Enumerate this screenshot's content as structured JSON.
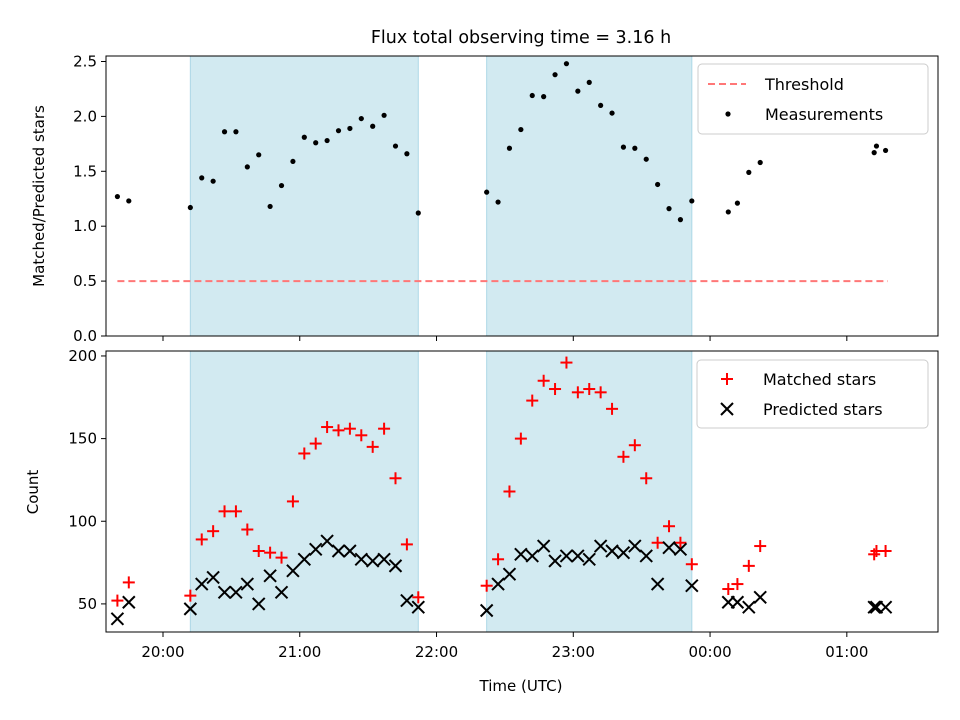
{
  "chart_data": [
    {
      "type": "scatter",
      "title": "Flux total observing time = 3.16 h",
      "xlabel": "",
      "ylabel": "Matched/Predicted stars",
      "xlim": [
        "19:35",
        "01:40"
      ],
      "ylim": [
        0,
        2.55
      ],
      "yticks": [
        0.0,
        0.5,
        1.0,
        1.5,
        2.0,
        2.5
      ],
      "ytick_labels": [
        "0.0",
        "0.5",
        "1.0",
        "1.5",
        "2.0",
        "2.5"
      ],
      "shaded_intervals": [
        [
          "20:12",
          "21:52"
        ],
        [
          "22:22",
          "23:52"
        ]
      ],
      "shade_color": "#add8e6",
      "legend_position": "upper right",
      "series": [
        {
          "name": "Threshold",
          "kind": "line",
          "style": "dashed",
          "color": "#ff7777",
          "x": [
            "19:40",
            "01:18"
          ],
          "y": [
            0.5,
            0.5
          ]
        },
        {
          "name": "Measurements",
          "kind": "scatter",
          "color": "#000000",
          "x": [
            "19:40",
            "19:45",
            "20:12",
            "20:17",
            "20:22",
            "20:27",
            "20:32",
            "20:37",
            "20:42",
            "20:47",
            "20:52",
            "20:57",
            "21:02",
            "21:07",
            "21:12",
            "21:17",
            "21:22",
            "21:27",
            "21:32",
            "21:37",
            "21:42",
            "21:47",
            "21:52",
            "22:22",
            "22:27",
            "22:32",
            "22:37",
            "22:42",
            "22:47",
            "22:52",
            "22:57",
            "23:02",
            "23:07",
            "23:12",
            "23:17",
            "23:22",
            "23:27",
            "23:32",
            "23:37",
            "23:42",
            "23:47",
            "23:52",
            "00:08",
            "00:12",
            "00:17",
            "00:22",
            "01:12",
            "01:13",
            "01:17"
          ],
          "y": [
            1.27,
            1.23,
            1.17,
            1.44,
            1.41,
            1.86,
            1.86,
            1.54,
            1.65,
            1.18,
            1.37,
            1.59,
            1.81,
            1.76,
            1.78,
            1.87,
            1.89,
            1.98,
            1.91,
            2.01,
            1.73,
            1.66,
            1.12,
            1.31,
            1.22,
            1.71,
            1.88,
            2.19,
            2.18,
            2.38,
            2.48,
            2.23,
            2.31,
            2.1,
            2.03,
            1.72,
            1.71,
            1.61,
            1.38,
            1.16,
            1.06,
            1.23,
            1.13,
            1.21,
            1.49,
            1.58,
            1.67,
            1.73,
            1.69
          ]
        }
      ],
      "x_ticks_hidden": true
    },
    {
      "type": "scatter",
      "title": "",
      "xlabel": "Time (UTC)",
      "ylabel": "Count",
      "xlim": [
        "19:35",
        "01:40"
      ],
      "ylim": [
        33,
        203
      ],
      "yticks": [
        50,
        100,
        150,
        200
      ],
      "ytick_labels": [
        "50",
        "100",
        "150",
        "200"
      ],
      "xticks": [
        "20:00",
        "21:00",
        "22:00",
        "23:00",
        "00:00",
        "01:00"
      ],
      "xtick_labels": [
        "20:00",
        "21:00",
        "22:00",
        "23:00",
        "00:00",
        "01:00"
      ],
      "shaded_intervals": [
        [
          "20:12",
          "21:52"
        ],
        [
          "22:22",
          "23:52"
        ]
      ],
      "shade_color": "#add8e6",
      "legend_position": "upper right",
      "series": [
        {
          "name": "Matched stars",
          "kind": "scatter",
          "marker": "+",
          "color": "#ff0000",
          "x": [
            "19:40",
            "19:45",
            "20:12",
            "20:17",
            "20:22",
            "20:27",
            "20:32",
            "20:37",
            "20:42",
            "20:47",
            "20:52",
            "20:57",
            "21:02",
            "21:07",
            "21:12",
            "21:17",
            "21:22",
            "21:27",
            "21:32",
            "21:37",
            "21:42",
            "21:47",
            "21:52",
            "22:22",
            "22:27",
            "22:32",
            "22:37",
            "22:42",
            "22:47",
            "22:52",
            "22:57",
            "23:02",
            "23:07",
            "23:12",
            "23:17",
            "23:22",
            "23:27",
            "23:32",
            "23:37",
            "23:42",
            "23:47",
            "23:52",
            "00:08",
            "00:12",
            "00:17",
            "00:22",
            "01:12",
            "01:13",
            "01:17"
          ],
          "y": [
            52,
            63,
            55,
            89,
            94,
            106,
            106,
            95,
            82,
            81,
            78,
            112,
            141,
            147,
            157,
            155,
            156,
            152,
            145,
            156,
            126,
            86,
            54,
            61,
            77,
            118,
            150,
            173,
            185,
            180,
            196,
            178,
            180,
            178,
            168,
            139,
            146,
            126,
            87,
            97,
            87,
            74,
            59,
            62,
            73,
            85,
            80,
            82,
            82
          ]
        },
        {
          "name": "Predicted stars",
          "kind": "scatter",
          "marker": "x",
          "color": "#000000",
          "x": [
            "19:40",
            "19:45",
            "20:12",
            "20:17",
            "20:22",
            "20:27",
            "20:32",
            "20:37",
            "20:42",
            "20:47",
            "20:52",
            "20:57",
            "21:02",
            "21:07",
            "21:12",
            "21:17",
            "21:22",
            "21:27",
            "21:32",
            "21:37",
            "21:42",
            "21:47",
            "21:52",
            "22:22",
            "22:27",
            "22:32",
            "22:37",
            "22:42",
            "22:47",
            "22:52",
            "22:57",
            "23:02",
            "23:07",
            "23:12",
            "23:17",
            "23:22",
            "23:27",
            "23:32",
            "23:37",
            "23:42",
            "23:47",
            "23:52",
            "00:08",
            "00:12",
            "00:17",
            "00:22",
            "01:12",
            "01:13",
            "01:17"
          ],
          "y": [
            41,
            51,
            47,
            62,
            66,
            57,
            57,
            62,
            50,
            67,
            57,
            70,
            77,
            83,
            88,
            82,
            82,
            77,
            76,
            77,
            73,
            52,
            48,
            46,
            62,
            68,
            80,
            79,
            85,
            76,
            79,
            79,
            77,
            85,
            82,
            81,
            85,
            79,
            62,
            84,
            83,
            61,
            51,
            51,
            48,
            54,
            48,
            48,
            48
          ]
        }
      ]
    }
  ]
}
